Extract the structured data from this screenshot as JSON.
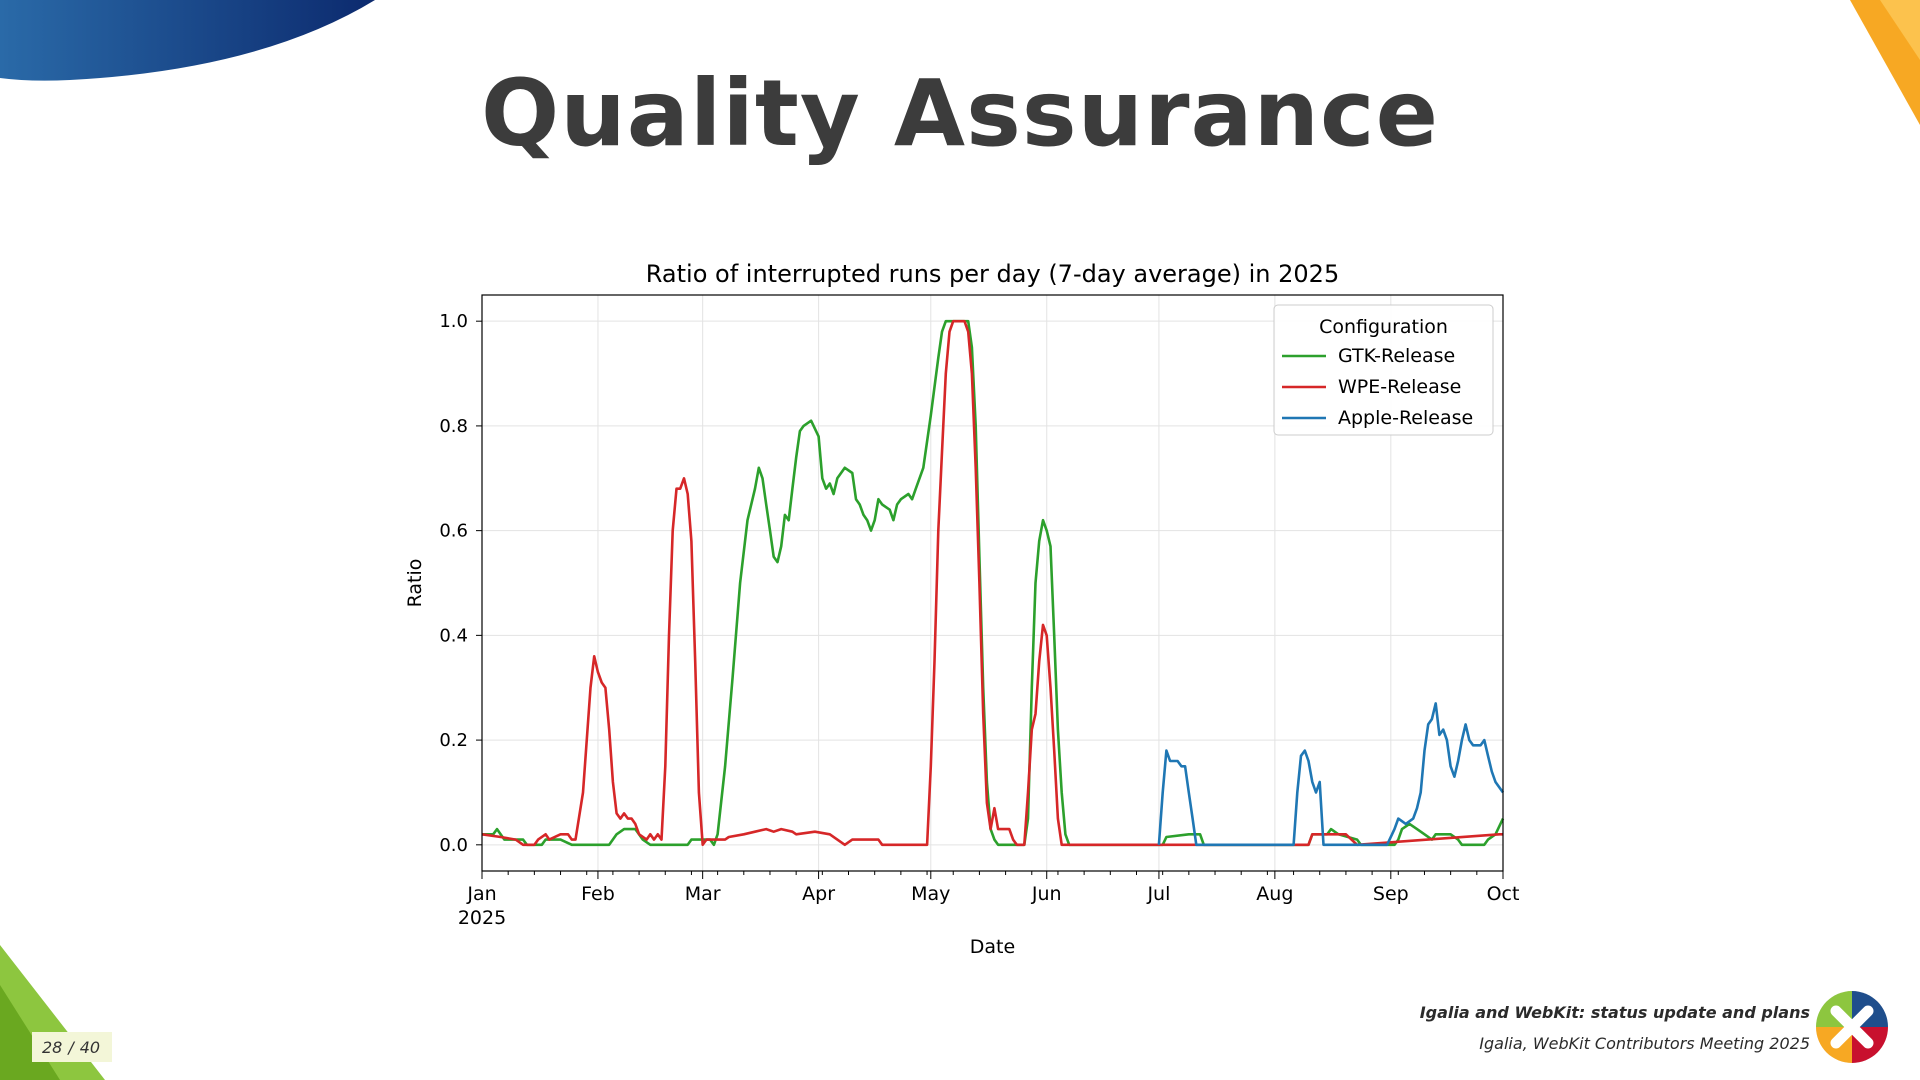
{
  "slide": {
    "title": "Quality Assurance",
    "footer_title": "Igalia and WebKit: status update and plans",
    "footer_subtitle": "Igalia, WebKit Contributors Meeting 2025",
    "page_current": "28",
    "page_separator": "/",
    "page_total": "40",
    "colors": {
      "title": "#3c3c3c",
      "blue_band": "#1f4e8c",
      "orange": "#f7a823",
      "green": "#8dc63f"
    }
  },
  "chart_data": {
    "type": "line",
    "title": "Ratio of interrupted runs per day (7-day average) in 2025",
    "xlabel": "Date",
    "ylabel": "Ratio",
    "xlim": [
      "2025-01-01",
      "2025-10-01"
    ],
    "ylim": [
      -0.05,
      1.05
    ],
    "yticks": [
      0.0,
      0.2,
      0.4,
      0.6,
      0.8,
      1.0
    ],
    "ytick_labels": [
      "0.0",
      "0.2",
      "0.4",
      "0.6",
      "0.8",
      "1.0"
    ],
    "xticks": [
      {
        "date": "2025-01-01",
        "label": "Jan",
        "sublabel": "2025"
      },
      {
        "date": "2025-02-01",
        "label": "Feb"
      },
      {
        "date": "2025-03-01",
        "label": "Mar"
      },
      {
        "date": "2025-04-01",
        "label": "Apr"
      },
      {
        "date": "2025-05-01",
        "label": "May"
      },
      {
        "date": "2025-06-01",
        "label": "Jun"
      },
      {
        "date": "2025-07-01",
        "label": "Jul"
      },
      {
        "date": "2025-08-01",
        "label": "Aug"
      },
      {
        "date": "2025-09-01",
        "label": "Sep"
      },
      {
        "date": "2025-10-01",
        "label": "Oct"
      }
    ],
    "grid": true,
    "legend": {
      "title": "Configuration",
      "placement": "top-right"
    },
    "series": [
      {
        "name": "GTK-Release",
        "color": "#2ca02c",
        "points": [
          [
            "2025-01-01",
            0.02
          ],
          [
            "2025-01-04",
            0.02
          ],
          [
            "2025-01-05",
            0.03
          ],
          [
            "2025-01-07",
            0.01
          ],
          [
            "2025-01-12",
            0.01
          ],
          [
            "2025-01-13",
            0.0
          ],
          [
            "2025-01-17",
            0.0
          ],
          [
            "2025-01-18",
            0.01
          ],
          [
            "2025-01-22",
            0.01
          ],
          [
            "2025-01-25",
            0.0
          ],
          [
            "2025-02-04",
            0.0
          ],
          [
            "2025-02-06",
            0.02
          ],
          [
            "2025-02-08",
            0.03
          ],
          [
            "2025-02-11",
            0.03
          ],
          [
            "2025-02-13",
            0.01
          ],
          [
            "2025-02-15",
            0.0
          ],
          [
            "2025-02-25",
            0.0
          ],
          [
            "2025-02-26",
            0.01
          ],
          [
            "2025-03-03",
            0.01
          ],
          [
            "2025-03-04",
            0.0
          ],
          [
            "2025-03-05",
            0.02
          ],
          [
            "2025-03-07",
            0.15
          ],
          [
            "2025-03-09",
            0.32
          ],
          [
            "2025-03-11",
            0.5
          ],
          [
            "2025-03-13",
            0.62
          ],
          [
            "2025-03-15",
            0.68
          ],
          [
            "2025-03-16",
            0.72
          ],
          [
            "2025-03-17",
            0.7
          ],
          [
            "2025-03-18",
            0.65
          ],
          [
            "2025-03-19",
            0.6
          ],
          [
            "2025-03-20",
            0.55
          ],
          [
            "2025-03-21",
            0.54
          ],
          [
            "2025-03-22",
            0.57
          ],
          [
            "2025-03-23",
            0.63
          ],
          [
            "2025-03-24",
            0.62
          ],
          [
            "2025-03-25",
            0.68
          ],
          [
            "2025-03-26",
            0.74
          ],
          [
            "2025-03-27",
            0.79
          ],
          [
            "2025-03-28",
            0.8
          ],
          [
            "2025-03-30",
            0.81
          ],
          [
            "2025-04-01",
            0.78
          ],
          [
            "2025-04-02",
            0.7
          ],
          [
            "2025-04-03",
            0.68
          ],
          [
            "2025-04-04",
            0.69
          ],
          [
            "2025-04-05",
            0.67
          ],
          [
            "2025-04-06",
            0.7
          ],
          [
            "2025-04-08",
            0.72
          ],
          [
            "2025-04-10",
            0.71
          ],
          [
            "2025-04-11",
            0.66
          ],
          [
            "2025-04-12",
            0.65
          ],
          [
            "2025-04-13",
            0.63
          ],
          [
            "2025-04-14",
            0.62
          ],
          [
            "2025-04-15",
            0.6
          ],
          [
            "2025-04-16",
            0.62
          ],
          [
            "2025-04-17",
            0.66
          ],
          [
            "2025-04-18",
            0.65
          ],
          [
            "2025-04-20",
            0.64
          ],
          [
            "2025-04-21",
            0.62
          ],
          [
            "2025-04-22",
            0.65
          ],
          [
            "2025-04-23",
            0.66
          ],
          [
            "2025-04-25",
            0.67
          ],
          [
            "2025-04-26",
            0.66
          ],
          [
            "2025-04-27",
            0.68
          ],
          [
            "2025-04-29",
            0.72
          ],
          [
            "2025-05-01",
            0.82
          ],
          [
            "2025-05-03",
            0.93
          ],
          [
            "2025-05-04",
            0.98
          ],
          [
            "2025-05-05",
            1.0
          ],
          [
            "2025-05-11",
            1.0
          ],
          [
            "2025-05-12",
            0.95
          ],
          [
            "2025-05-13",
            0.8
          ],
          [
            "2025-05-14",
            0.55
          ],
          [
            "2025-05-15",
            0.3
          ],
          [
            "2025-05-16",
            0.12
          ],
          [
            "2025-05-17",
            0.03
          ],
          [
            "2025-05-18",
            0.01
          ],
          [
            "2025-05-19",
            0.0
          ],
          [
            "2025-05-26",
            0.0
          ],
          [
            "2025-05-27",
            0.05
          ],
          [
            "2025-05-28",
            0.3
          ],
          [
            "2025-05-29",
            0.5
          ],
          [
            "2025-05-30",
            0.58
          ],
          [
            "2025-05-31",
            0.62
          ],
          [
            "2025-06-01",
            0.6
          ],
          [
            "2025-06-02",
            0.57
          ],
          [
            "2025-06-03",
            0.4
          ],
          [
            "2025-06-04",
            0.22
          ],
          [
            "2025-06-05",
            0.1
          ],
          [
            "2025-06-06",
            0.02
          ],
          [
            "2025-06-07",
            0.0
          ],
          [
            "2025-07-02",
            0.0
          ],
          [
            "2025-07-03",
            0.015
          ],
          [
            "2025-07-09",
            0.02
          ],
          [
            "2025-07-12",
            0.02
          ],
          [
            "2025-07-13",
            0.0
          ],
          [
            "2025-08-10",
            0.0
          ],
          [
            "2025-08-11",
            0.02
          ],
          [
            "2025-08-15",
            0.02
          ],
          [
            "2025-08-16",
            0.03
          ],
          [
            "2025-08-18",
            0.02
          ],
          [
            "2025-08-23",
            0.01
          ],
          [
            "2025-08-24",
            0.0
          ],
          [
            "2025-09-02",
            0.0
          ],
          [
            "2025-09-03",
            0.01
          ],
          [
            "2025-09-04",
            0.03
          ],
          [
            "2025-09-06",
            0.04
          ],
          [
            "2025-09-08",
            0.03
          ],
          [
            "2025-09-10",
            0.02
          ],
          [
            "2025-09-12",
            0.01
          ],
          [
            "2025-09-13",
            0.02
          ],
          [
            "2025-09-17",
            0.02
          ],
          [
            "2025-09-19",
            0.01
          ],
          [
            "2025-09-20",
            0.0
          ],
          [
            "2025-09-26",
            0.0
          ],
          [
            "2025-09-27",
            0.01
          ],
          [
            "2025-09-29",
            0.02
          ],
          [
            "2025-10-01",
            0.05
          ]
        ]
      },
      {
        "name": "WPE-Release",
        "color": "#d62728",
        "points": [
          [
            "2025-01-01",
            0.02
          ],
          [
            "2025-01-06",
            0.015
          ],
          [
            "2025-01-10",
            0.01
          ],
          [
            "2025-01-12",
            0.0
          ],
          [
            "2025-01-15",
            0.0
          ],
          [
            "2025-01-16",
            0.01
          ],
          [
            "2025-01-18",
            0.02
          ],
          [
            "2025-01-19",
            0.01
          ],
          [
            "2025-01-22",
            0.02
          ],
          [
            "2025-01-24",
            0.02
          ],
          [
            "2025-01-25",
            0.01
          ],
          [
            "2025-01-26",
            0.01
          ],
          [
            "2025-01-28",
            0.1
          ],
          [
            "2025-01-30",
            0.3
          ],
          [
            "2025-01-31",
            0.36
          ],
          [
            "2025-02-01",
            0.33
          ],
          [
            "2025-02-02",
            0.31
          ],
          [
            "2025-02-03",
            0.3
          ],
          [
            "2025-02-04",
            0.22
          ],
          [
            "2025-02-05",
            0.12
          ],
          [
            "2025-02-06",
            0.06
          ],
          [
            "2025-02-07",
            0.05
          ],
          [
            "2025-02-08",
            0.06
          ],
          [
            "2025-02-09",
            0.05
          ],
          [
            "2025-02-10",
            0.05
          ],
          [
            "2025-02-11",
            0.04
          ],
          [
            "2025-02-12",
            0.02
          ],
          [
            "2025-02-14",
            0.01
          ],
          [
            "2025-02-15",
            0.02
          ],
          [
            "2025-02-16",
            0.01
          ],
          [
            "2025-02-17",
            0.02
          ],
          [
            "2025-02-18",
            0.01
          ],
          [
            "2025-02-19",
            0.15
          ],
          [
            "2025-02-20",
            0.4
          ],
          [
            "2025-02-21",
            0.6
          ],
          [
            "2025-02-22",
            0.68
          ],
          [
            "2025-02-23",
            0.68
          ],
          [
            "2025-02-24",
            0.7
          ],
          [
            "2025-02-25",
            0.67
          ],
          [
            "2025-02-26",
            0.58
          ],
          [
            "2025-02-27",
            0.35
          ],
          [
            "2025-02-28",
            0.1
          ],
          [
            "2025-03-01",
            0.0
          ],
          [
            "2025-03-02",
            0.01
          ],
          [
            "2025-03-07",
            0.01
          ],
          [
            "2025-03-08",
            0.015
          ],
          [
            "2025-03-12",
            0.02
          ],
          [
            "2025-03-15",
            0.025
          ],
          [
            "2025-03-18",
            0.03
          ],
          [
            "2025-03-20",
            0.025
          ],
          [
            "2025-03-22",
            0.03
          ],
          [
            "2025-03-25",
            0.025
          ],
          [
            "2025-03-26",
            0.02
          ],
          [
            "2025-03-31",
            0.025
          ],
          [
            "2025-04-04",
            0.02
          ],
          [
            "2025-04-06",
            0.01
          ],
          [
            "2025-04-08",
            0.0
          ],
          [
            "2025-04-10",
            0.01
          ],
          [
            "2025-04-17",
            0.01
          ],
          [
            "2025-04-18",
            0.0
          ],
          [
            "2025-04-30",
            0.0
          ],
          [
            "2025-05-01",
            0.15
          ],
          [
            "2025-05-02",
            0.35
          ],
          [
            "2025-05-03",
            0.6
          ],
          [
            "2025-05-04",
            0.75
          ],
          [
            "2025-05-05",
            0.9
          ],
          [
            "2025-05-06",
            0.98
          ],
          [
            "2025-05-07",
            1.0
          ],
          [
            "2025-05-10",
            1.0
          ],
          [
            "2025-05-11",
            0.98
          ],
          [
            "2025-05-12",
            0.9
          ],
          [
            "2025-05-13",
            0.72
          ],
          [
            "2025-05-14",
            0.5
          ],
          [
            "2025-05-15",
            0.25
          ],
          [
            "2025-05-16",
            0.08
          ],
          [
            "2025-05-17",
            0.03
          ],
          [
            "2025-05-18",
            0.07
          ],
          [
            "2025-05-19",
            0.03
          ],
          [
            "2025-05-22",
            0.03
          ],
          [
            "2025-05-23",
            0.01
          ],
          [
            "2025-05-24",
            0.0
          ],
          [
            "2025-05-26",
            0.0
          ],
          [
            "2025-05-27",
            0.1
          ],
          [
            "2025-05-28",
            0.22
          ],
          [
            "2025-05-29",
            0.25
          ],
          [
            "2025-05-30",
            0.35
          ],
          [
            "2025-05-31",
            0.42
          ],
          [
            "2025-06-01",
            0.4
          ],
          [
            "2025-06-02",
            0.3
          ],
          [
            "2025-06-03",
            0.18
          ],
          [
            "2025-06-04",
            0.05
          ],
          [
            "2025-06-05",
            0.0
          ],
          [
            "2025-08-10",
            0.0
          ],
          [
            "2025-08-11",
            0.02
          ],
          [
            "2025-08-20",
            0.02
          ],
          [
            "2025-08-23",
            0.0
          ],
          [
            "2025-09-30",
            0.02
          ],
          [
            "2025-10-01",
            0.02
          ]
        ]
      },
      {
        "name": "Apple-Release",
        "color": "#1f77b4",
        "points": [
          [
            "2025-07-01",
            0.0
          ],
          [
            "2025-07-02",
            0.1
          ],
          [
            "2025-07-03",
            0.18
          ],
          [
            "2025-07-04",
            0.16
          ],
          [
            "2025-07-06",
            0.16
          ],
          [
            "2025-07-07",
            0.15
          ],
          [
            "2025-07-08",
            0.15
          ],
          [
            "2025-07-09",
            0.1
          ],
          [
            "2025-07-10",
            0.05
          ],
          [
            "2025-07-11",
            0.0
          ],
          [
            "2025-08-06",
            0.0
          ],
          [
            "2025-08-07",
            0.1
          ],
          [
            "2025-08-08",
            0.17
          ],
          [
            "2025-08-09",
            0.18
          ],
          [
            "2025-08-10",
            0.16
          ],
          [
            "2025-08-11",
            0.12
          ],
          [
            "2025-08-12",
            0.1
          ],
          [
            "2025-08-13",
            0.12
          ],
          [
            "2025-08-14",
            0.0
          ],
          [
            "2025-08-16",
            0.0
          ],
          [
            "2025-08-31",
            0.0
          ],
          [
            "2025-09-02",
            0.03
          ],
          [
            "2025-09-03",
            0.05
          ],
          [
            "2025-09-05",
            0.04
          ],
          [
            "2025-09-07",
            0.05
          ],
          [
            "2025-09-08",
            0.07
          ],
          [
            "2025-09-09",
            0.1
          ],
          [
            "2025-09-10",
            0.18
          ],
          [
            "2025-09-11",
            0.23
          ],
          [
            "2025-09-12",
            0.24
          ],
          [
            "2025-09-13",
            0.27
          ],
          [
            "2025-09-14",
            0.21
          ],
          [
            "2025-09-15",
            0.22
          ],
          [
            "2025-09-16",
            0.2
          ],
          [
            "2025-09-17",
            0.15
          ],
          [
            "2025-09-18",
            0.13
          ],
          [
            "2025-09-19",
            0.16
          ],
          [
            "2025-09-20",
            0.2
          ],
          [
            "2025-09-21",
            0.23
          ],
          [
            "2025-09-22",
            0.2
          ],
          [
            "2025-09-23",
            0.19
          ],
          [
            "2025-09-25",
            0.19
          ],
          [
            "2025-09-26",
            0.2
          ],
          [
            "2025-09-27",
            0.17
          ],
          [
            "2025-09-28",
            0.14
          ],
          [
            "2025-09-29",
            0.12
          ],
          [
            "2025-10-01",
            0.1
          ]
        ]
      }
    ]
  }
}
